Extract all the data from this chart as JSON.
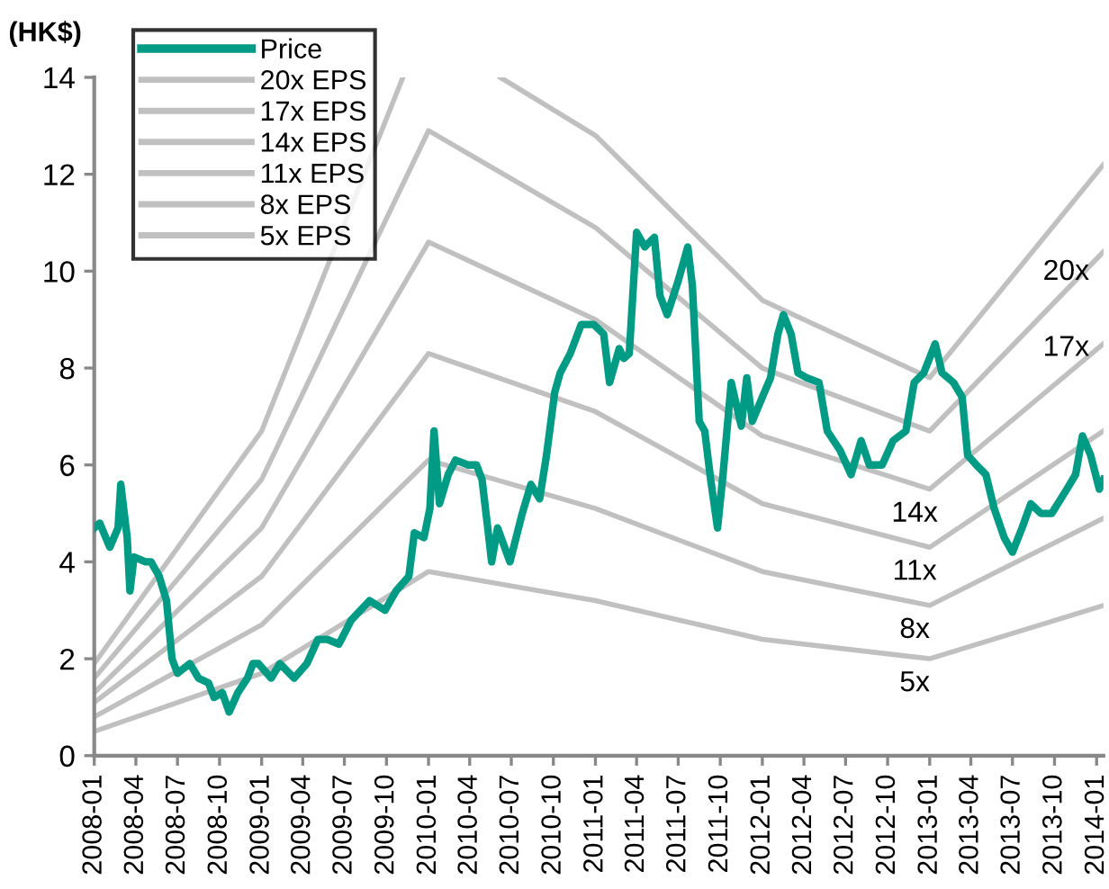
{
  "chart_data": {
    "type": "line",
    "ylabel": "(HK$)",
    "xlim": [
      "2008-01-01",
      "2014-01-16"
    ],
    "ylim": [
      0,
      14
    ],
    "yticks": [
      0,
      2,
      4,
      6,
      8,
      10,
      12,
      14
    ],
    "xticks": [
      "2008-01",
      "2008-04",
      "2008-07",
      "2008-10",
      "2009-01",
      "2009-04",
      "2009-07",
      "2009-10",
      "2010-01",
      "2010-04",
      "2010-07",
      "2010-10",
      "2011-01",
      "2011-04",
      "2011-07",
      "2011-10",
      "2012-01",
      "2012-04",
      "2012-07",
      "2012-10",
      "2013-01",
      "2013-04",
      "2013-07",
      "2013-10",
      "2014-01"
    ],
    "grid": false,
    "legend": "top left",
    "marker": "none",
    "line_style": "solid",
    "series": [
      {
        "name": "Price",
        "color": "#009b84",
        "x": [
          "2008-01-01",
          "2008-01-13",
          "2008-02-04",
          "2008-02-22",
          "2008-02-28",
          "2008-03-13",
          "2008-03-19",
          "2008-03-28",
          "2008-04-22",
          "2008-05-04",
          "2008-05-22",
          "2008-06-07",
          "2008-06-19",
          "2008-07-01",
          "2008-07-28",
          "2008-08-16",
          "2008-09-07",
          "2008-09-19",
          "2008-10-07",
          "2008-10-22",
          "2008-11-10",
          "2008-12-01",
          "2008-12-13",
          "2008-12-25",
          "2009-01-22",
          "2009-02-10",
          "2009-03-13",
          "2009-04-10",
          "2009-05-04",
          "2009-05-25",
          "2009-06-19",
          "2009-07-16",
          "2009-08-25",
          "2009-09-28",
          "2009-10-22",
          "2009-11-19",
          "2009-12-01",
          "2009-12-22",
          "2010-01-04",
          "2010-01-13",
          "2010-01-25",
          "2010-02-13",
          "2010-03-01",
          "2010-03-28",
          "2010-04-16",
          "2010-04-28",
          "2010-05-13",
          "2010-05-19",
          "2010-06-01",
          "2010-06-28",
          "2010-07-25",
          "2010-08-13",
          "2010-09-01",
          "2010-09-16",
          "2010-10-04",
          "2010-10-16",
          "2010-11-07",
          "2010-12-01",
          "2010-12-28",
          "2011-01-19",
          "2011-02-01",
          "2011-02-22",
          "2011-03-04",
          "2011-03-16",
          "2011-04-01",
          "2011-04-19",
          "2011-05-10",
          "2011-05-22",
          "2011-06-07",
          "2011-07-01",
          "2011-07-22",
          "2011-08-01",
          "2011-08-16",
          "2011-08-28",
          "2011-09-10",
          "2011-09-25",
          "2011-10-07",
          "2011-10-25",
          "2011-11-16",
          "2011-11-28",
          "2011-12-10",
          "2012-01-01",
          "2012-01-19",
          "2012-02-04",
          "2012-02-16",
          "2012-03-04",
          "2012-03-19",
          "2012-04-07",
          "2012-05-04",
          "2012-05-22",
          "2012-06-19",
          "2012-07-13",
          "2012-08-04",
          "2012-08-22",
          "2012-09-19",
          "2012-10-13",
          "2012-11-10",
          "2012-11-28",
          "2012-12-19",
          "2013-01-13",
          "2013-01-28",
          "2013-02-22",
          "2013-03-13",
          "2013-03-25",
          "2013-04-13",
          "2013-05-04",
          "2013-05-22",
          "2013-06-13",
          "2013-07-01",
          "2013-07-22",
          "2013-08-10",
          "2013-09-01",
          "2013-09-25",
          "2013-10-28",
          "2013-11-16",
          "2013-12-01",
          "2013-12-19",
          "2014-01-07",
          "2014-01-16"
        ],
        "values": [
          4.7,
          4.8,
          4.3,
          4.7,
          5.6,
          4.5,
          3.4,
          4.1,
          4.0,
          4.0,
          3.7,
          3.2,
          2.0,
          1.7,
          1.9,
          1.6,
          1.5,
          1.2,
          1.3,
          0.9,
          1.3,
          1.6,
          1.9,
          1.9,
          1.6,
          1.9,
          1.6,
          1.9,
          2.4,
          2.4,
          2.3,
          2.8,
          3.2,
          3.0,
          3.4,
          3.7,
          4.6,
          4.5,
          5.1,
          6.7,
          5.2,
          5.8,
          6.1,
          6.0,
          6.0,
          5.7,
          4.5,
          4.0,
          4.7,
          4.0,
          5.0,
          5.6,
          5.3,
          6.2,
          7.5,
          7.9,
          8.3,
          8.9,
          8.9,
          8.7,
          7.7,
          8.4,
          8.2,
          8.3,
          10.8,
          10.5,
          10.7,
          9.5,
          9.1,
          9.8,
          10.5,
          9.7,
          6.9,
          6.7,
          5.7,
          4.7,
          5.8,
          7.7,
          6.8,
          7.8,
          6.9,
          7.4,
          7.8,
          8.7,
          9.1,
          8.7,
          7.9,
          7.8,
          7.7,
          6.7,
          6.3,
          5.8,
          6.5,
          6.0,
          6.0,
          6.5,
          6.7,
          7.7,
          7.9,
          8.5,
          7.9,
          7.7,
          7.4,
          6.2,
          6.0,
          5.8,
          5.1,
          4.5,
          4.2,
          4.7,
          5.2,
          5.0,
          5.0,
          5.5,
          5.8,
          6.6,
          6.2,
          5.5,
          5.7
        ]
      },
      {
        "name": "20x EPS",
        "color": "#c0c0c0",
        "x": [
          "2008-01-01",
          "2009-01-01",
          "2009-11-06",
          "2010-01-01",
          "2010-06-07",
          "2011-01-01",
          "2012-01-01",
          "2013-01-01",
          "2014-01-16"
        ],
        "values": [
          1.9,
          6.7,
          14,
          null,
          14,
          12.8,
          9.4,
          7.8,
          12.2
        ]
      },
      {
        "name": "17x EPS",
        "color": "#c0c0c0",
        "x": [
          "2008-01-01",
          "2009-01-01",
          "2010-01-01",
          "2011-01-01",
          "2012-01-01",
          "2013-01-01",
          "2014-01-16"
        ],
        "values": [
          1.6,
          5.7,
          12.9,
          10.9,
          8.0,
          6.7,
          10.4
        ]
      },
      {
        "name": "14x EPS",
        "color": "#c0c0c0",
        "x": [
          "2008-01-01",
          "2009-01-01",
          "2010-01-01",
          "2011-01-01",
          "2012-01-01",
          "2013-01-01",
          "2014-01-16"
        ],
        "values": [
          1.3,
          4.7,
          10.6,
          9.0,
          6.6,
          5.5,
          8.5
        ]
      },
      {
        "name": "11x EPS",
        "color": "#c0c0c0",
        "x": [
          "2008-01-01",
          "2009-01-01",
          "2010-01-01",
          "2011-01-01",
          "2012-01-01",
          "2013-01-01",
          "2014-01-16"
        ],
        "values": [
          1.1,
          3.7,
          8.3,
          7.1,
          5.2,
          4.3,
          6.7
        ]
      },
      {
        "name": "8x EPS",
        "color": "#c0c0c0",
        "x": [
          "2008-01-01",
          "2009-01-01",
          "2010-01-01",
          "2011-01-01",
          "2012-01-01",
          "2013-01-01",
          "2014-01-16"
        ],
        "values": [
          0.8,
          2.7,
          6.1,
          5.1,
          3.8,
          3.1,
          4.9
        ]
      },
      {
        "name": "5x EPS",
        "color": "#c0c0c0",
        "x": [
          "2008-01-01",
          "2009-01-01",
          "2010-01-01",
          "2011-01-01",
          "2012-01-01",
          "2013-01-01",
          "2014-01-16"
        ],
        "values": [
          0.5,
          1.7,
          3.8,
          3.2,
          2.4,
          2.0,
          3.1
        ]
      }
    ],
    "annotations": [
      "20x",
      "17x",
      "14x",
      "11x",
      "8x",
      "5x"
    ]
  }
}
